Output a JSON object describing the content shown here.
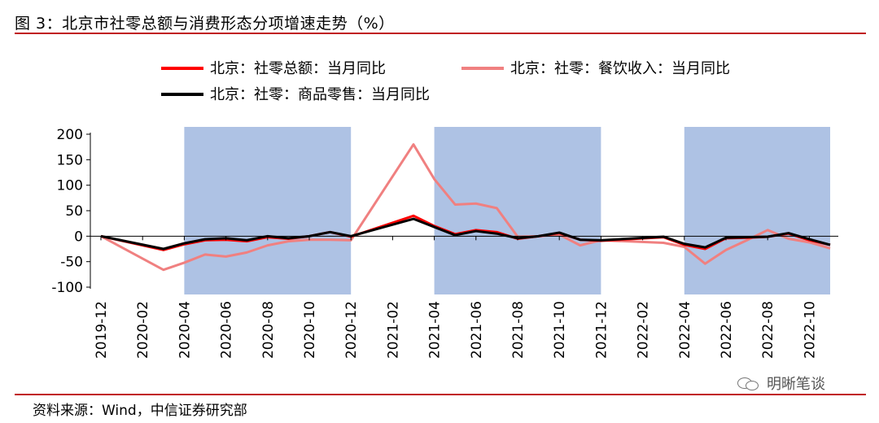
{
  "figure_title": "图 3：北京市社零总额与消费形态分项增速走势（%）",
  "source_text": "资料来源：Wind，中信证券研究部",
  "watermark_text": "明晰笔谈",
  "chart_data": {
    "type": "line",
    "title": "",
    "xlabel": "",
    "ylabel": "",
    "ylim": [
      -100,
      200
    ],
    "yticks": [
      200,
      150,
      100,
      50,
      0,
      -50,
      -100
    ],
    "ytick_labels": [
      "200",
      "150",
      "100",
      "50",
      "0",
      "-50",
      "-100"
    ],
    "xtick_labels": [
      "2019-12",
      "2020-02",
      "2020-04",
      "2020-06",
      "2020-08",
      "2020-10",
      "2020-12",
      "2021-02",
      "2021-04",
      "2021-06",
      "2021-08",
      "2021-10",
      "2021-12",
      "2022-02",
      "2022-04",
      "2022-06",
      "2022-08",
      "2022-10"
    ],
    "x": [
      "2019-12",
      "2020-03",
      "2020-04",
      "2020-05",
      "2020-06",
      "2020-07",
      "2020-08",
      "2020-09",
      "2020-10",
      "2020-11",
      "2020-12",
      "2021-03",
      "2021-04",
      "2021-05",
      "2021-06",
      "2021-07",
      "2021-08",
      "2021-09",
      "2021-10",
      "2021-11",
      "2021-12",
      "2022-03",
      "2022-04",
      "2022-05",
      "2022-06",
      "2022-07",
      "2022-08",
      "2022-09",
      "2022-10",
      "2022-11"
    ],
    "series": [
      {
        "name": "北京：社零总额：当月同比",
        "color": "#ff0000",
        "values": [
          0,
          -27,
          -16,
          -8,
          -7,
          -10,
          -2,
          -5,
          0,
          8,
          -1,
          40,
          20,
          4,
          12,
          8,
          -5,
          0,
          6,
          -7,
          -9,
          -2,
          -17,
          -25,
          -4,
          -3,
          -1,
          5,
          -8,
          -17
        ]
      },
      {
        "name": "北京：社零：餐饮收入：当月同比",
        "color": "#f08080",
        "values": [
          0,
          -66,
          -52,
          -36,
          -40,
          -32,
          -18,
          -10,
          -7,
          -7,
          -8,
          180,
          112,
          62,
          64,
          55,
          -1,
          0,
          3,
          -18,
          -8,
          -13,
          -21,
          -54,
          -27,
          -8,
          12,
          -5,
          -12,
          -24
        ]
      },
      {
        "name": "北京：社零：商品零售：当月同比",
        "color": "#000000",
        "values": [
          0,
          -25,
          -14,
          -6,
          -4,
          -8,
          0,
          -4,
          0,
          8,
          0,
          34,
          18,
          2,
          10,
          5,
          -4,
          0,
          7,
          -7,
          -8,
          -1,
          -15,
          -22,
          -3,
          -2,
          -1,
          6,
          -6,
          -17
        ]
      }
    ],
    "shaded_periods": [
      [
        "2020-04",
        "2020-12"
      ],
      [
        "2021-04",
        "2021-12"
      ],
      [
        "2022-04",
        "2022-11"
      ]
    ],
    "shade_color": "#aec2e4",
    "grid": false,
    "legend_position": "top"
  }
}
